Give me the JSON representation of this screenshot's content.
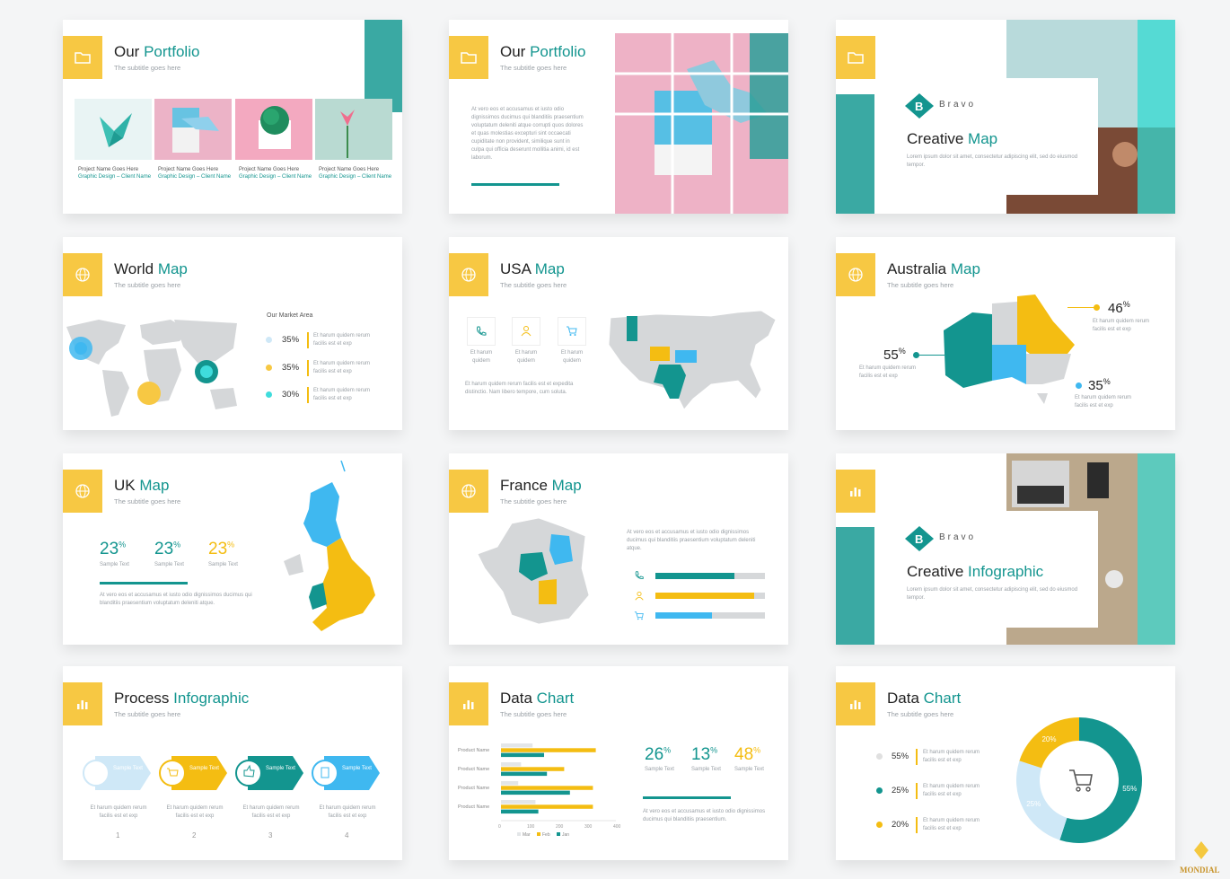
{
  "slides": {
    "portfolio1": {
      "title_plain": "Our ",
      "title_accent": "Portfolio",
      "subtitle": "The subtitle goes here",
      "projects": [
        {
          "name": "Project Name Goes Here",
          "category": "Graphic Design – Client Name"
        },
        {
          "name": "Project Name Goes Here",
          "category": "Graphic Design – Client Name"
        },
        {
          "name": "Project Name Goes Here",
          "category": "Graphic Design – Client Name"
        },
        {
          "name": "Project Name Goes Here",
          "category": "Graphic Design – Client Name"
        }
      ]
    },
    "portfolio2": {
      "title_plain": "Our ",
      "title_accent": "Portfolio",
      "subtitle": "The subtitle goes here",
      "body": "At vero eos et accusamus et iusto odio dignissimos ducimus qui blanditiis praesentium voluptatum deleniti atque corrupti quos dolores et quas molestias excepturi sint occaecati cupiditate non provident, similique sunt in culpa qui officia deserunt mollitia animi, id est laborum."
    },
    "creative_map": {
      "brand": "Bravo",
      "title_plain": "Creative ",
      "title_accent": "Map",
      "body": "Lorem ipsum dolor sit amet, consectetur adipiscing elit, sed do eiusmod tempor."
    },
    "world_map": {
      "title_plain": "World ",
      "title_accent": "Map",
      "subtitle": "The subtitle goes here",
      "market_label": "Our Market Area",
      "rows": [
        {
          "pct": "35%",
          "text": "Et harum quidem rerum facilis est et exp",
          "color": "#cfe8f7"
        },
        {
          "pct": "35%",
          "text": "Et harum quidem rerum facilis est et exp",
          "color": "#f7c843"
        },
        {
          "pct": "30%",
          "text": "Et harum quidem rerum facilis est et exp",
          "color": "#3fdcdc"
        }
      ]
    },
    "usa_map": {
      "title_plain": "USA ",
      "title_accent": "Map",
      "subtitle": "The subtitle goes here",
      "icons": [
        {
          "icon": "phone-icon",
          "label": "Et harum quidem"
        },
        {
          "icon": "person-icon",
          "label": "Et harum quidem"
        },
        {
          "icon": "cart-icon",
          "label": "Et harum quidem"
        }
      ],
      "body": "Et harum quidem rerum facilis est et expedita distinctio. Nam libero tempore, cum soluta."
    },
    "australia_map": {
      "title_plain": "Australia ",
      "title_accent": "Map",
      "subtitle": "The subtitle goes here",
      "callouts": [
        {
          "pct": "46",
          "text": "Et harum quidem rerum facilis est et exp"
        },
        {
          "pct": "55",
          "text": "Et harum quidem rerum facilis est et exp"
        },
        {
          "pct": "35",
          "text": "Et harum quidem rerum facilis est et exp"
        }
      ]
    },
    "uk_map": {
      "title_plain": "UK ",
      "title_accent": "Map",
      "subtitle": "The subtitle goes here",
      "stats": [
        {
          "value": "23",
          "label": "Sample Text"
        },
        {
          "value": "23",
          "label": "Sample Text"
        },
        {
          "value": "23",
          "label": "Sample Text"
        }
      ],
      "body": "At vero eos et accusamus et iusto odio dignissimos ducimus qui blanditiis praesentium voluptatum deleniti atque."
    },
    "france_map": {
      "title_plain": "France ",
      "title_accent": "Map",
      "subtitle": "The subtitle goes here",
      "body": "At vero eos et accusamus et iusto odio dignissimos ducimus qui blanditiis praesentium voluptatum deleniti atque.",
      "bars": [
        {
          "icon": "phone-icon",
          "fill": 0.72,
          "color": "#13958f"
        },
        {
          "icon": "person-icon",
          "fill": 0.9,
          "color": "#f4bd12"
        },
        {
          "icon": "cart-icon",
          "fill": 0.52,
          "color": "#3fb8f0"
        }
      ]
    },
    "creative_infographic": {
      "brand": "Bravo",
      "title_plain": "Creative ",
      "title_accent": "Infographic",
      "body": "Lorem ipsum dolor sit amet, consectetur adipiscing elit, sed do eiusmod tempor."
    },
    "process": {
      "title_plain": "Process ",
      "title_accent": "Infographic",
      "subtitle": "The subtitle goes here",
      "steps": [
        {
          "label": "Sample Text",
          "text": "Et harum quidem rerum facilis est et exp",
          "num": "1",
          "color": "#cfe8f7"
        },
        {
          "label": "Sample Text",
          "text": "Et harum quidem rerum facilis est et exp",
          "num": "2",
          "color": "#f4bd12"
        },
        {
          "label": "Sample Text",
          "text": "Et harum quidem rerum facilis est et exp",
          "num": "3",
          "color": "#13958f"
        },
        {
          "label": "Sample Text",
          "text": "Et harum quidem rerum facilis est et exp",
          "num": "4",
          "color": "#3fb8f0"
        }
      ]
    },
    "data_chart1": {
      "title_plain": "Data ",
      "title_accent": "Chart",
      "subtitle": "The subtitle goes here",
      "stats": [
        {
          "value": "26",
          "label": "Sample Text"
        },
        {
          "value": "13",
          "label": "Sample Text"
        },
        {
          "value": "48",
          "label": "Sample Text"
        }
      ],
      "body": "At vero eos et accusamus et iusto odio dignissimos ducimus qui blanditiis praesentium."
    },
    "data_chart2": {
      "title_plain": "Data ",
      "title_accent": "Chart",
      "subtitle": "The subtitle goes here",
      "rows": [
        {
          "pct": "55%",
          "text": "Et harum quidem rerum facilis est et exp",
          "color": "#e0e0e0"
        },
        {
          "pct": "25%",
          "text": "Et harum quidem rerum facilis est et exp",
          "color": "#13958f"
        },
        {
          "pct": "20%",
          "text": "Et harum quidem rerum facilis est et exp",
          "color": "#f4bd12"
        }
      ]
    }
  },
  "chart_data": [
    {
      "type": "bar",
      "orientation": "horizontal",
      "categories": [
        "Product Name",
        "Product Name",
        "Product Name",
        "Product Name"
      ],
      "series": [
        {
          "name": "Mar",
          "values": [
            110,
            70,
            60,
            120
          ],
          "color": "#e3e6e8"
        },
        {
          "name": "Feb",
          "values": [
            330,
            220,
            320,
            320
          ],
          "color": "#f4bd12"
        },
        {
          "name": "Jan",
          "values": [
            150,
            160,
            240,
            130
          ],
          "color": "#13958f"
        }
      ],
      "xticks": [
        "0",
        "100",
        "200",
        "300",
        "400"
      ],
      "xlim": [
        0,
        400
      ]
    },
    {
      "type": "pie",
      "donut": true,
      "slices": [
        {
          "label": "55%",
          "value": 55,
          "color": "#13958f"
        },
        {
          "label": "25%",
          "value": 25,
          "color": "#cfe8f7"
        },
        {
          "label": "20%",
          "value": 20,
          "color": "#f4bd12"
        }
      ]
    }
  ],
  "colors": {
    "teal": "#13958f",
    "yellow": "#f4bd12",
    "blue": "#3fb8f0",
    "gray_map": "#d5d7d9"
  },
  "watermark": "MONDIAL"
}
